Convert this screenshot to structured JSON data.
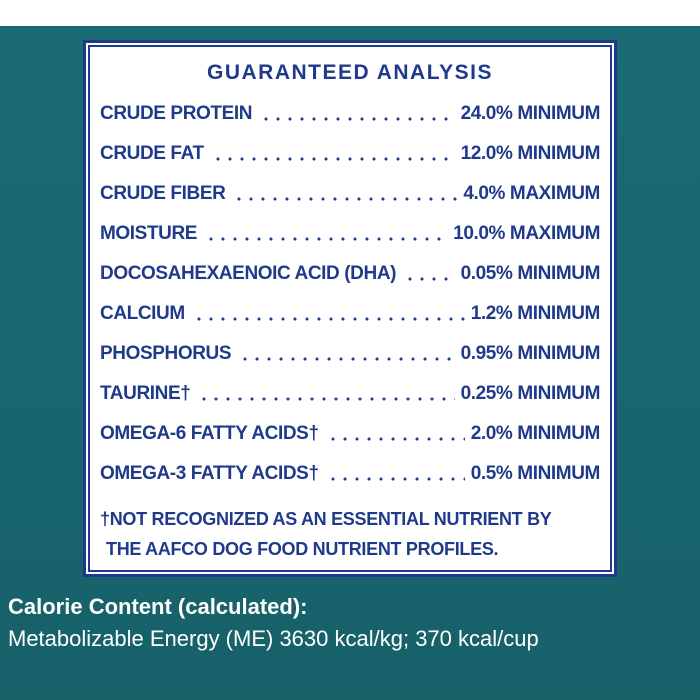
{
  "panel": {
    "title": "GUARANTEED ANALYSIS",
    "rows": [
      {
        "name": "CRUDE PROTEIN",
        "value": "24.0% MINIMUM"
      },
      {
        "name": "CRUDE FAT",
        "value": "12.0% MINIMUM"
      },
      {
        "name": "CRUDE FIBER",
        "value": "4.0% MAXIMUM"
      },
      {
        "name": "MOISTURE",
        "value": "10.0% MAXIMUM"
      },
      {
        "name": "DOCOSAHEXAENOIC ACID (DHA)",
        "value": "0.05% MINIMUM"
      },
      {
        "name": "CALCIUM",
        "value": "1.2% MINIMUM"
      },
      {
        "name": "PHOSPHORUS",
        "value": "0.95% MINIMUM"
      },
      {
        "name": "TAURINE†",
        "value": "0.25% MINIMUM"
      },
      {
        "name": "OMEGA-6 FATTY ACIDS†",
        "value": "2.0% MINIMUM"
      },
      {
        "name": "OMEGA-3 FATTY ACIDS†",
        "value": "0.5% MINIMUM"
      }
    ],
    "footnote": [
      "†NOT RECOGNIZED AS AN ESSENTIAL NUTRIENT BY",
      "THE  AAFCO DOG FOOD NUTRIENT PROFILES."
    ]
  },
  "calorie": {
    "heading": "Calorie Content (calculated):",
    "text": "Metabolizable Energy (ME) 3630 kcal/kg; 370 kcal/cup"
  }
}
